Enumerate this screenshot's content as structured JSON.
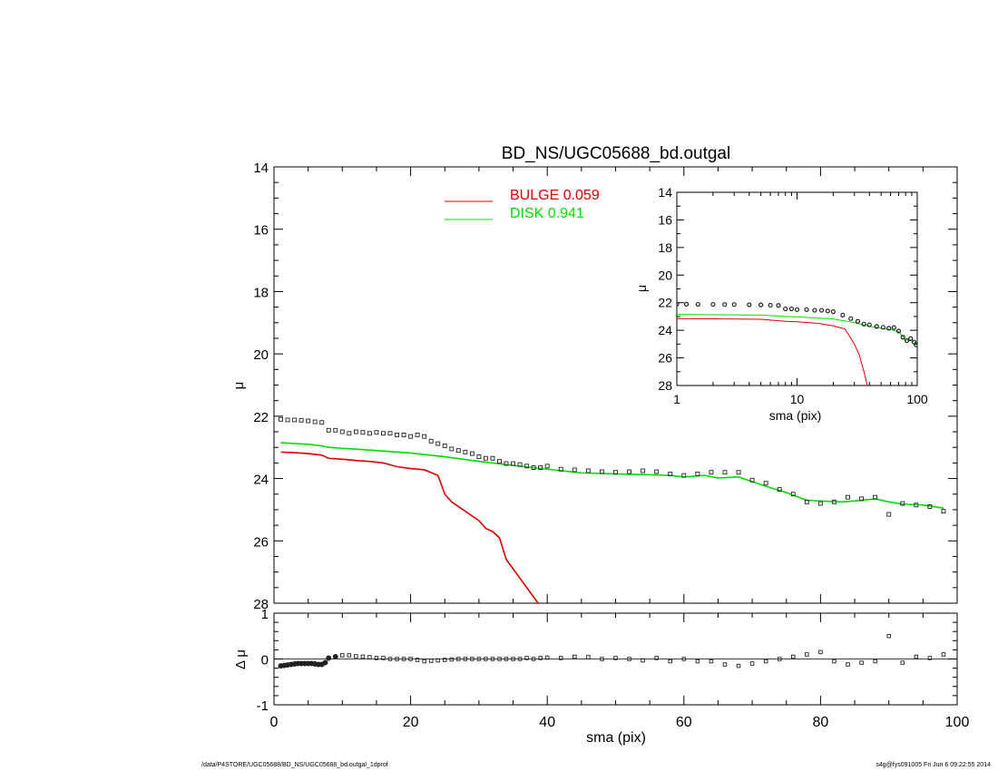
{
  "chart_data": [
    {
      "type": "line",
      "title": "BD_NS/UGC05688_bd.outgal",
      "xlabel": "",
      "ylabel": "μ",
      "xlim": [
        0,
        100
      ],
      "ylim": [
        28,
        14
      ],
      "y_inverted": true,
      "yticks": [
        14,
        16,
        18,
        20,
        22,
        24,
        26,
        28
      ],
      "xticks_shown_on_bottom_panel": true,
      "legend": [
        {
          "label": "BULGE  0.059",
          "color": "#dd0000"
        },
        {
          "label": "DISK  0.941",
          "color": "#00dd00"
        }
      ],
      "legend_placement": "top-center",
      "series": [
        {
          "name": "BULGE",
          "style": "line",
          "color": "#dd0000",
          "x": [
            1,
            3,
            5,
            7,
            8,
            10,
            12,
            14,
            16,
            18,
            20,
            22,
            24,
            25,
            26,
            28,
            30,
            31,
            32,
            33,
            34,
            36,
            38,
            39
          ],
          "y": [
            23.15,
            23.17,
            23.2,
            23.25,
            23.35,
            23.38,
            23.42,
            23.45,
            23.5,
            23.62,
            23.68,
            23.72,
            23.9,
            24.5,
            24.75,
            25.05,
            25.35,
            25.6,
            25.7,
            25.9,
            26.6,
            27.2,
            27.8,
            28.1
          ]
        },
        {
          "name": "DISK",
          "style": "line",
          "color": "#00dd00",
          "x": [
            1,
            5,
            7,
            8,
            10,
            15,
            20,
            25,
            30,
            35,
            40,
            45,
            50,
            55,
            58,
            60,
            63,
            65,
            68,
            70,
            72,
            75,
            78,
            80,
            83,
            85,
            88,
            90,
            92,
            95,
            98
          ],
          "y": [
            22.85,
            22.9,
            22.95,
            23.0,
            23.03,
            23.1,
            23.18,
            23.3,
            23.45,
            23.58,
            23.7,
            23.82,
            23.85,
            23.88,
            23.9,
            23.95,
            23.9,
            23.98,
            23.95,
            24.1,
            24.25,
            24.45,
            24.7,
            24.72,
            24.75,
            24.72,
            24.65,
            24.75,
            24.82,
            24.85,
            24.95
          ]
        },
        {
          "name": "",
          "style": "markers",
          "color": "#222222",
          "x": [
            1,
            2,
            3,
            4,
            5,
            6,
            7,
            8,
            9,
            10,
            11,
            12,
            13,
            14,
            15,
            16,
            17,
            18,
            19,
            20,
            21,
            22,
            23,
            24,
            25,
            26,
            27,
            28,
            29,
            30,
            31,
            32,
            33,
            34,
            35,
            36,
            37,
            38,
            39,
            40,
            42,
            44,
            46,
            48,
            50,
            52,
            54,
            56,
            58,
            60,
            62,
            64,
            66,
            68,
            70,
            72,
            74,
            76,
            78,
            80,
            82,
            84,
            86,
            88,
            90,
            92,
            94,
            96,
            98
          ],
          "y": [
            22.1,
            22.12,
            22.12,
            22.13,
            22.15,
            22.18,
            22.2,
            22.45,
            22.45,
            22.5,
            22.55,
            22.5,
            22.52,
            22.55,
            22.52,
            22.55,
            22.55,
            22.6,
            22.6,
            22.65,
            22.6,
            22.65,
            22.8,
            22.88,
            22.95,
            23.05,
            23.1,
            23.15,
            23.2,
            23.3,
            23.35,
            23.35,
            23.45,
            23.52,
            23.52,
            23.55,
            23.6,
            23.65,
            23.65,
            23.6,
            23.7,
            23.72,
            23.75,
            23.78,
            23.8,
            23.78,
            23.75,
            23.78,
            23.85,
            23.9,
            23.85,
            23.8,
            23.8,
            23.8,
            24.05,
            24.15,
            24.35,
            24.5,
            24.75,
            24.8,
            24.75,
            24.6,
            24.65,
            24.6,
            25.15,
            24.8,
            24.85,
            24.9,
            25.05
          ]
        }
      ]
    },
    {
      "type": "line",
      "title": "",
      "xlabel": "sma (pix)",
      "ylabel": "μ",
      "x_scale": "log",
      "xlim": [
        1,
        100
      ],
      "ylim": [
        28,
        14
      ],
      "y_inverted": true,
      "xtick_labels": [
        "1",
        "10",
        "100"
      ],
      "yticks": [
        14,
        16,
        18,
        20,
        22,
        24,
        26,
        28
      ],
      "placement": "inset top-right",
      "series": [
        {
          "name": "BULGE",
          "style": "line",
          "color": "#dd0000",
          "x": [
            1,
            2,
            5,
            8,
            10,
            15,
            20,
            25,
            30,
            33,
            36,
            39
          ],
          "y": [
            23.15,
            23.17,
            23.2,
            23.35,
            23.38,
            23.5,
            23.68,
            23.9,
            25.0,
            25.8,
            27.0,
            28.2
          ]
        },
        {
          "name": "DISK",
          "style": "line",
          "color": "#00dd00",
          "x": [
            1,
            2,
            5,
            8,
            10,
            20,
            30,
            40,
            50,
            60,
            70,
            80,
            90,
            98
          ],
          "y": [
            22.85,
            22.87,
            22.9,
            23.0,
            23.03,
            23.18,
            23.45,
            23.7,
            23.85,
            23.95,
            24.1,
            24.7,
            24.75,
            24.95
          ]
        },
        {
          "name": "",
          "style": "markers",
          "color": "#222222",
          "x": [
            1,
            1.2,
            1.5,
            2,
            2.5,
            3,
            4,
            5,
            6,
            7,
            8,
            9,
            10,
            12,
            14,
            16,
            18,
            20,
            24,
            28,
            32,
            36,
            40,
            46,
            52,
            58,
            64,
            70,
            76,
            82,
            88,
            94,
            98
          ],
          "y": [
            22.1,
            22.11,
            22.12,
            22.12,
            22.13,
            22.13,
            22.15,
            22.16,
            22.18,
            22.2,
            22.45,
            22.45,
            22.5,
            22.5,
            22.55,
            22.55,
            22.6,
            22.65,
            22.9,
            23.15,
            23.35,
            23.55,
            23.6,
            23.72,
            23.78,
            23.85,
            23.8,
            24.05,
            24.5,
            24.75,
            24.6,
            24.85,
            25.05
          ]
        }
      ]
    },
    {
      "type": "scatter",
      "title": "",
      "xlabel": "sma (pix)",
      "ylabel": "Δ μ",
      "xlim": [
        0,
        100
      ],
      "ylim": [
        -1,
        1
      ],
      "xticks": [
        0,
        20,
        40,
        60,
        80,
        100
      ],
      "yticks": [
        -1,
        0,
        1
      ],
      "reference_line_y": 0,
      "series": [
        {
          "name": "",
          "color": "#222222",
          "x": [
            1,
            1.5,
            2,
            2.5,
            3,
            3.5,
            4,
            4.5,
            5,
            5.5,
            6,
            6.5,
            7,
            7.5,
            8,
            9,
            10,
            11,
            12,
            13,
            14,
            15,
            16,
            17,
            18,
            19,
            20,
            21,
            22,
            23,
            24,
            25,
            26,
            27,
            28,
            29,
            30,
            31,
            32,
            33,
            34,
            35,
            36,
            37,
            38,
            39,
            40,
            42,
            44,
            46,
            48,
            50,
            52,
            54,
            56,
            58,
            60,
            62,
            64,
            66,
            68,
            70,
            72,
            74,
            76,
            78,
            80,
            82,
            84,
            86,
            88,
            90,
            92,
            94,
            96,
            98
          ],
          "y": [
            -0.15,
            -0.14,
            -0.13,
            -0.12,
            -0.11,
            -0.1,
            -0.1,
            -0.1,
            -0.1,
            -0.1,
            -0.11,
            -0.12,
            -0.12,
            -0.08,
            0.02,
            0.05,
            0.08,
            0.08,
            0.06,
            0.05,
            0.04,
            0.02,
            0.02,
            0.0,
            0.0,
            0.0,
            0.0,
            -0.02,
            -0.05,
            -0.04,
            -0.03,
            -0.02,
            -0.01,
            0.0,
            0.0,
            0.0,
            0.0,
            0.0,
            0.0,
            0.0,
            0.0,
            0.0,
            0.0,
            0.02,
            0.0,
            0.02,
            0.03,
            0.02,
            0.05,
            0.04,
            0.0,
            0.02,
            0.0,
            -0.03,
            0.02,
            -0.05,
            0.0,
            -0.05,
            -0.05,
            -0.12,
            -0.15,
            -0.1,
            -0.05,
            0.0,
            0.05,
            0.1,
            0.15,
            -0.05,
            -0.12,
            -0.08,
            -0.05,
            0.5,
            -0.08,
            0.05,
            0.02,
            0.1
          ]
        }
      ]
    }
  ],
  "footer": {
    "left": "/data/P4STORE/UGC05688/BD_NS/UGC05688_bd.outgal_1dprof",
    "right": "s4g@fys091005  Fri Jun  6 09:22:55 2014"
  }
}
